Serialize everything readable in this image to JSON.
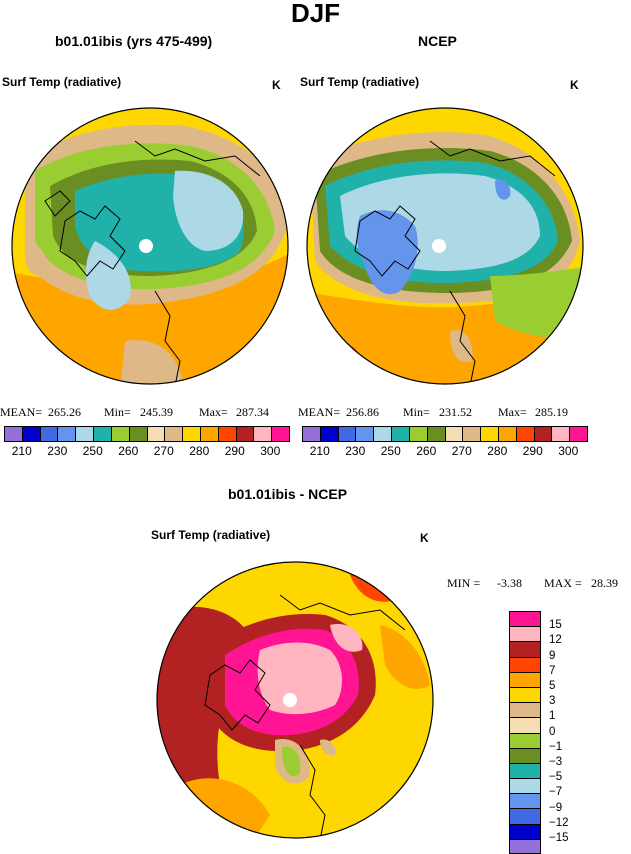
{
  "main_title": "DJF",
  "panel_left": {
    "title": "b01.01ibis (yrs 475-499)",
    "variable": "Surf Temp (radiative)",
    "units": "K",
    "mean_label": "MEAN=",
    "mean": "265.26",
    "min_label": "Min=",
    "min": "245.39",
    "max_label": "Max=",
    "max": "287.34"
  },
  "panel_right": {
    "title": "NCEP",
    "variable": "Surf Temp (radiative)",
    "units": "K",
    "mean_label": "MEAN=",
    "mean": "256.86",
    "min_label": "Min=",
    "min": "231.52",
    "max_label": "Max=",
    "max": "285.19"
  },
  "abs_colorbar": {
    "colors": [
      "#9370db",
      "#0000cd",
      "#4169e1",
      "#6495ed",
      "#add8e6",
      "#20b2aa",
      "#9acd32",
      "#6b8e23",
      "#f5deb3",
      "#deb887",
      "#ffd700",
      "#ffa500",
      "#ff4500",
      "#b22222",
      "#ffb6c1",
      "#ff1493"
    ],
    "tick_labels": [
      "210",
      "230",
      "250",
      "260",
      "270",
      "280",
      "290",
      "300"
    ]
  },
  "diff_panel": {
    "title": "b01.01ibis - NCEP",
    "variable": "Surf Temp (radiative)",
    "units": "K",
    "min_label": "MIN =",
    "min": "-3.38",
    "max_label": "MAX =",
    "max": "28.39"
  },
  "diff_colorbar": {
    "colors": [
      "#ff1493",
      "#ffb6c1",
      "#b22222",
      "#ff4500",
      "#ffa500",
      "#ffd700",
      "#deb887",
      "#f5deb3",
      "#9acd32",
      "#6b8e23",
      "#20b2aa",
      "#add8e6",
      "#6495ed",
      "#4169e1",
      "#0000cd",
      "#9370db"
    ],
    "labels": [
      "15",
      "12",
      "9",
      "7",
      "5",
      "3",
      "1",
      "0",
      "−1",
      "−3",
      "−5",
      "−7",
      "−9",
      "−12",
      "−15"
    ]
  }
}
